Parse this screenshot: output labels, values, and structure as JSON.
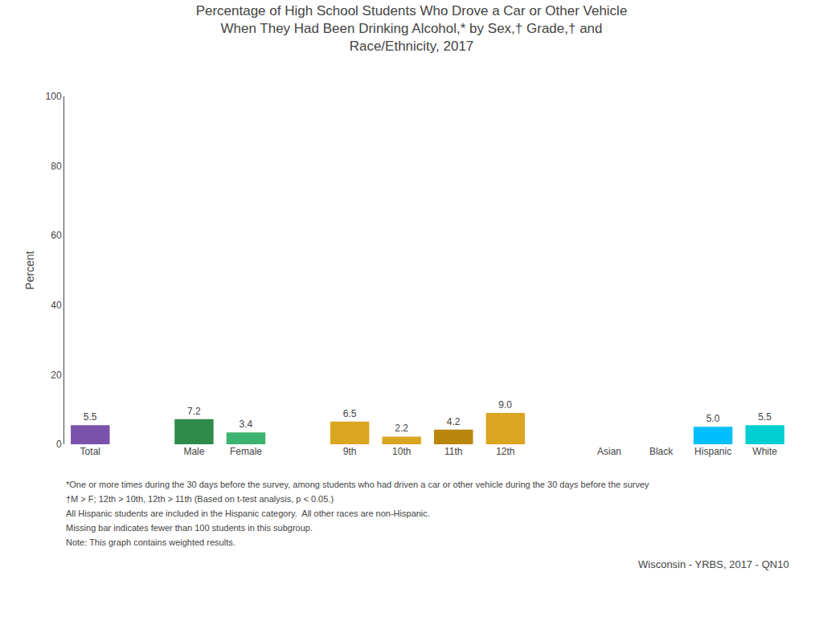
{
  "chart_data": {
    "type": "bar",
    "title": "Percentage of High School Students Who Drove a Car or Other Vehicle\nWhen They Had Been Drinking Alcohol,* by Sex,† Grade,† and\nRace/Ethnicity, 2017",
    "ylabel": "Percent",
    "categories": [
      "Total",
      null,
      "Male",
      "Female",
      null,
      "9th",
      "10th",
      "11th",
      "12th",
      null,
      "Asian",
      "Black",
      "Hispanic",
      "White"
    ],
    "values": [
      5.5,
      null,
      7.2,
      3.4,
      null,
      6.5,
      2.2,
      4.2,
      9.0,
      null,
      null,
      null,
      5.0,
      5.5
    ],
    "value_labels": [
      "5.5",
      null,
      "7.2",
      "3.4",
      null,
      "6.5",
      "2.2",
      "4.2",
      "9.0",
      null,
      null,
      null,
      "5.0",
      "5.5"
    ],
    "colors": [
      "#7B52AB",
      null,
      "#2E8B4A",
      "#3CB371",
      null,
      "#DAA520",
      "#DAA520",
      "#B8860B",
      "#DAA520",
      null,
      null,
      null,
      "#00BFFF",
      "#00CED1"
    ],
    "data_labels": true,
    "ylim": [
      0,
      100
    ],
    "yticks": [
      0,
      20,
      40,
      60,
      80,
      100
    ],
    "grid": false,
    "annotations": [
      "*One or more times during the 30 days before the survey, among students who had driven a car or other vehicle during the 30 days before the survey",
      "†M > F; 12th > 10th, 12th > 11th (Based on t-test analysis, p < 0.05.)",
      "All Hispanic students are included in the Hispanic category.  All other races are non-Hispanic.",
      "Missing bar indicates fewer than 100 students in this subgroup.",
      "Note: This graph contains weighted results.",
      "Wisconsin - YRBS, 2017 - QN10"
    ]
  }
}
